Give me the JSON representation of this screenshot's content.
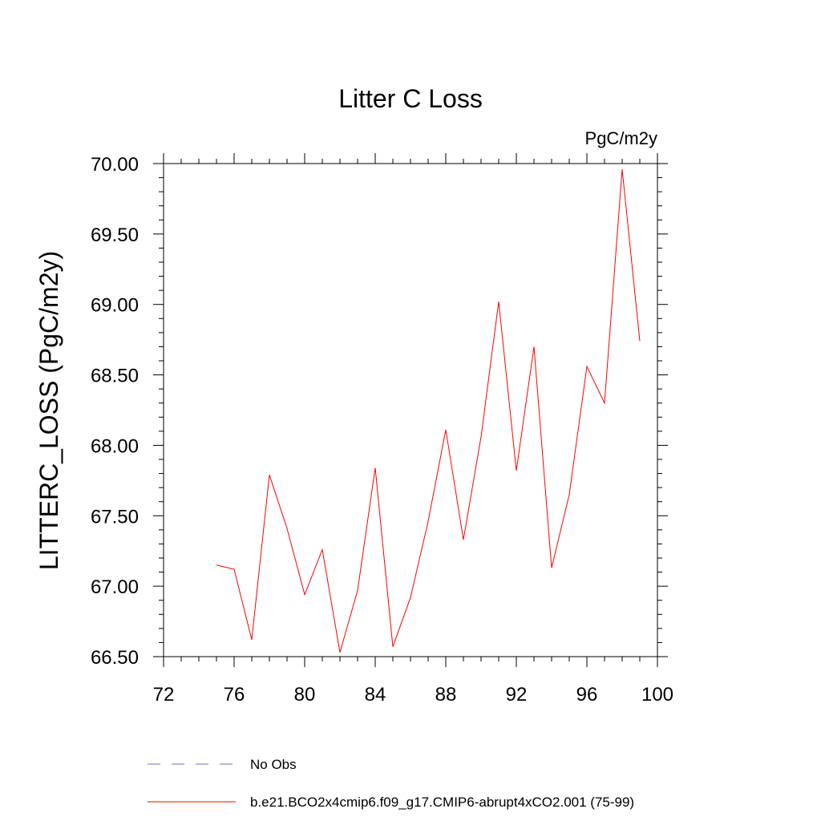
{
  "chart_data": {
    "type": "line",
    "title": "Litter C Loss",
    "units_label": "PgC/m2y",
    "xlabel": "",
    "ylabel": "LITTERC_LOSS  (PgC/m2y)",
    "xlim": [
      72,
      100
    ],
    "ylim": [
      66.5,
      70.0
    ],
    "x_ticks": [
      72,
      76,
      80,
      84,
      88,
      92,
      96,
      100
    ],
    "x_tick_labels": [
      "72",
      "76",
      "80",
      "84",
      "88",
      "92",
      "96",
      "100"
    ],
    "y_ticks": [
      66.5,
      67.0,
      67.5,
      68.0,
      68.5,
      69.0,
      69.5,
      70.0
    ],
    "y_tick_labels": [
      "66.50",
      "67.00",
      "67.50",
      "68.00",
      "68.50",
      "69.00",
      "69.50",
      "70.00"
    ],
    "grid": false,
    "legend_position": "bottom",
    "series": [
      {
        "name": "b.e21.BCO2x4cmip6.f09_g17.CMIP6-abrupt4xCO2.001 (75-99)",
        "color": "#ff0000",
        "style": "solid",
        "x": [
          75,
          76,
          77,
          78,
          79,
          80,
          81,
          82,
          83,
          84,
          85,
          86,
          87,
          88,
          89,
          90,
          91,
          92,
          93,
          94,
          95,
          96,
          97,
          98,
          99
        ],
        "y": [
          67.15,
          67.12,
          66.62,
          67.79,
          67.41,
          66.94,
          67.26,
          66.53,
          66.97,
          67.84,
          66.57,
          66.92,
          67.46,
          68.11,
          67.33,
          68.06,
          69.02,
          67.82,
          68.7,
          67.13,
          67.65,
          68.56,
          68.3,
          69.96,
          68.74
        ]
      }
    ],
    "legend_entries": [
      {
        "label": "No Obs",
        "color": "#7b68c8",
        "style": "dashed"
      },
      {
        "label": "b.e21.BCO2x4cmip6.f09_g17.CMIP6-abrupt4xCO2.001 (75-99)",
        "color": "#ff0000",
        "style": "solid"
      }
    ]
  }
}
